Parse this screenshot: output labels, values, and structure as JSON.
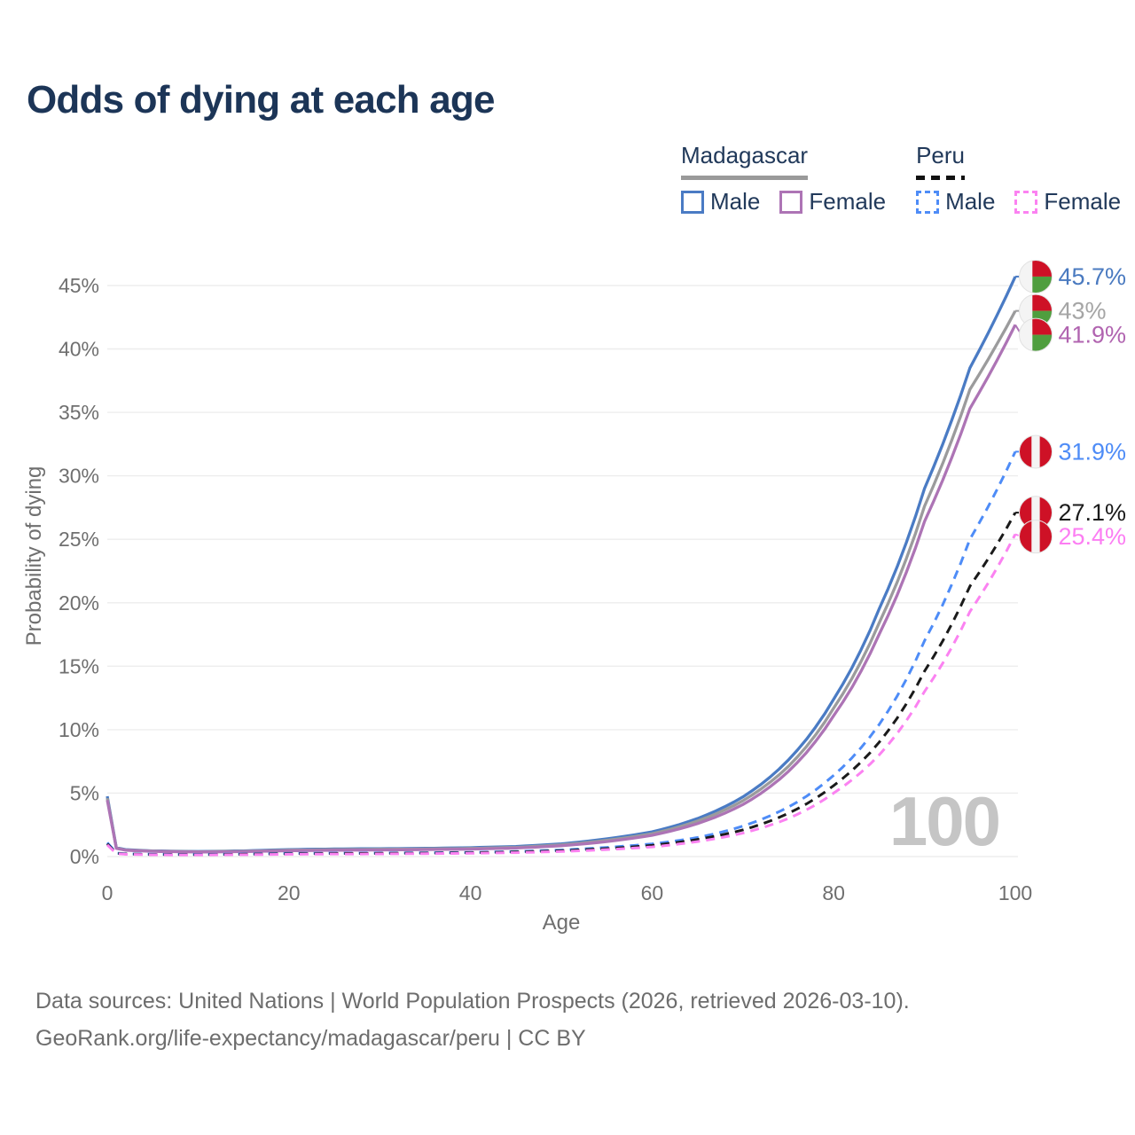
{
  "header": {
    "title": "Odds of dying at each age"
  },
  "legend": {
    "groups": [
      {
        "country": "Madagascar",
        "line_style": "solid",
        "underline_color": "#9a9a9a",
        "items": [
          {
            "label": "Male",
            "series": "mg_male"
          },
          {
            "label": "Female",
            "series": "mg_female"
          }
        ]
      },
      {
        "country": "Peru",
        "line_style": "dashed",
        "underline_color": "#111111",
        "items": [
          {
            "label": "Male",
            "series": "peru_male"
          },
          {
            "label": "Female",
            "series": "peru_female"
          }
        ]
      }
    ]
  },
  "chart_data": {
    "type": "line",
    "title": "Odds of dying at each age",
    "xlabel": "Age",
    "ylabel": "Probability of dying",
    "x_ticks": [
      0,
      20,
      40,
      60,
      80,
      100
    ],
    "y_ticks_pct": [
      0,
      5,
      10,
      15,
      20,
      25,
      30,
      35,
      40,
      45
    ],
    "xlim": [
      0,
      100
    ],
    "ylim_pct": [
      0,
      46
    ],
    "grid": "horizontal",
    "legend_position": "top-right",
    "watermark": "100",
    "ages": [
      0,
      1,
      2,
      5,
      10,
      15,
      20,
      25,
      30,
      35,
      40,
      45,
      50,
      55,
      60,
      65,
      70,
      75,
      80,
      85,
      90,
      95,
      100
    ],
    "series": [
      {
        "id": "mg_male",
        "name": "Madagascar Male",
        "color": "#4a7bc4",
        "dash": false,
        "flag": "madagascar",
        "end_label": "45.7%",
        "label_color": "#4a7ac0",
        "values": [
          4.75,
          0.7,
          0.55,
          0.45,
          0.4,
          0.45,
          0.55,
          0.6,
          0.62,
          0.65,
          0.7,
          0.8,
          1.0,
          1.4,
          1.95,
          3.0,
          4.7,
          7.6,
          12.4,
          19.5,
          29.0,
          38.5,
          45.7
        ]
      },
      {
        "id": "mg_total",
        "name": "Madagascar Both sexes",
        "color": "#9b9b9c",
        "dash": false,
        "flag": "madagascar",
        "end_label": "43%",
        "label_color": "#a5a5a5",
        "values": [
          4.6,
          0.67,
          0.52,
          0.43,
          0.38,
          0.42,
          0.5,
          0.55,
          0.57,
          0.6,
          0.64,
          0.73,
          0.92,
          1.28,
          1.8,
          2.8,
          4.4,
          7.1,
          11.7,
          18.4,
          27.6,
          36.8,
          43.0
        ]
      },
      {
        "id": "mg_female",
        "name": "Madagascar Female",
        "color": "#ad74b5",
        "dash": false,
        "flag": "madagascar",
        "end_label": "41.9%",
        "label_color": "#b164b0",
        "values": [
          4.45,
          0.64,
          0.5,
          0.41,
          0.36,
          0.39,
          0.46,
          0.5,
          0.52,
          0.55,
          0.59,
          0.67,
          0.85,
          1.18,
          1.68,
          2.6,
          4.1,
          6.7,
          11.1,
          17.5,
          26.4,
          35.3,
          41.9
        ]
      },
      {
        "id": "peru_male",
        "name": "Peru Male",
        "color": "#4e8cf7",
        "dash": true,
        "flag": "peru",
        "end_label": "31.9%",
        "label_color": "#4e8cf7",
        "values": [
          1.1,
          0.28,
          0.22,
          0.18,
          0.17,
          0.2,
          0.25,
          0.27,
          0.28,
          0.3,
          0.33,
          0.4,
          0.52,
          0.72,
          1.0,
          1.5,
          2.4,
          3.9,
          6.4,
          10.4,
          17.0,
          25.0,
          31.9
        ]
      },
      {
        "id": "peru_total",
        "name": "Peru Both sexes",
        "color": "#1a1a1a",
        "dash": true,
        "flag": "peru",
        "end_label": "27.1%",
        "label_color": "#1a1a1a",
        "values": [
          1.0,
          0.25,
          0.2,
          0.16,
          0.15,
          0.18,
          0.22,
          0.24,
          0.25,
          0.27,
          0.3,
          0.36,
          0.46,
          0.63,
          0.88,
          1.35,
          2.1,
          3.4,
          5.6,
          9.0,
          14.6,
          21.3,
          27.1
        ]
      },
      {
        "id": "peru_female",
        "name": "Peru Female",
        "color": "#fb82f1",
        "dash": true,
        "flag": "peru",
        "end_label": "25.4%",
        "label_color": "#fc7ef3",
        "values": [
          0.92,
          0.23,
          0.18,
          0.14,
          0.13,
          0.15,
          0.18,
          0.2,
          0.21,
          0.23,
          0.26,
          0.31,
          0.4,
          0.55,
          0.76,
          1.18,
          1.85,
          3.0,
          5.0,
          8.0,
          13.0,
          19.3,
          25.4
        ]
      }
    ]
  },
  "footer": {
    "line1": "Data sources: United Nations | World Population Prospects (2026, retrieved 2026-03-10).",
    "line2": "GeoRank.org/life-expectancy/madagascar/peru | CC BY"
  },
  "colors": {
    "title_text": "#1c3557",
    "legend_text": "#21395a",
    "axis_text": "#6f6f6f",
    "grid": "#ededed",
    "watermark": "#c5c5c5",
    "flag_red": "#ce1126",
    "flag_green": "#4f9e3e",
    "flag_white": "#f4f4f4",
    "flag_ring": "#e2e2e2"
  }
}
